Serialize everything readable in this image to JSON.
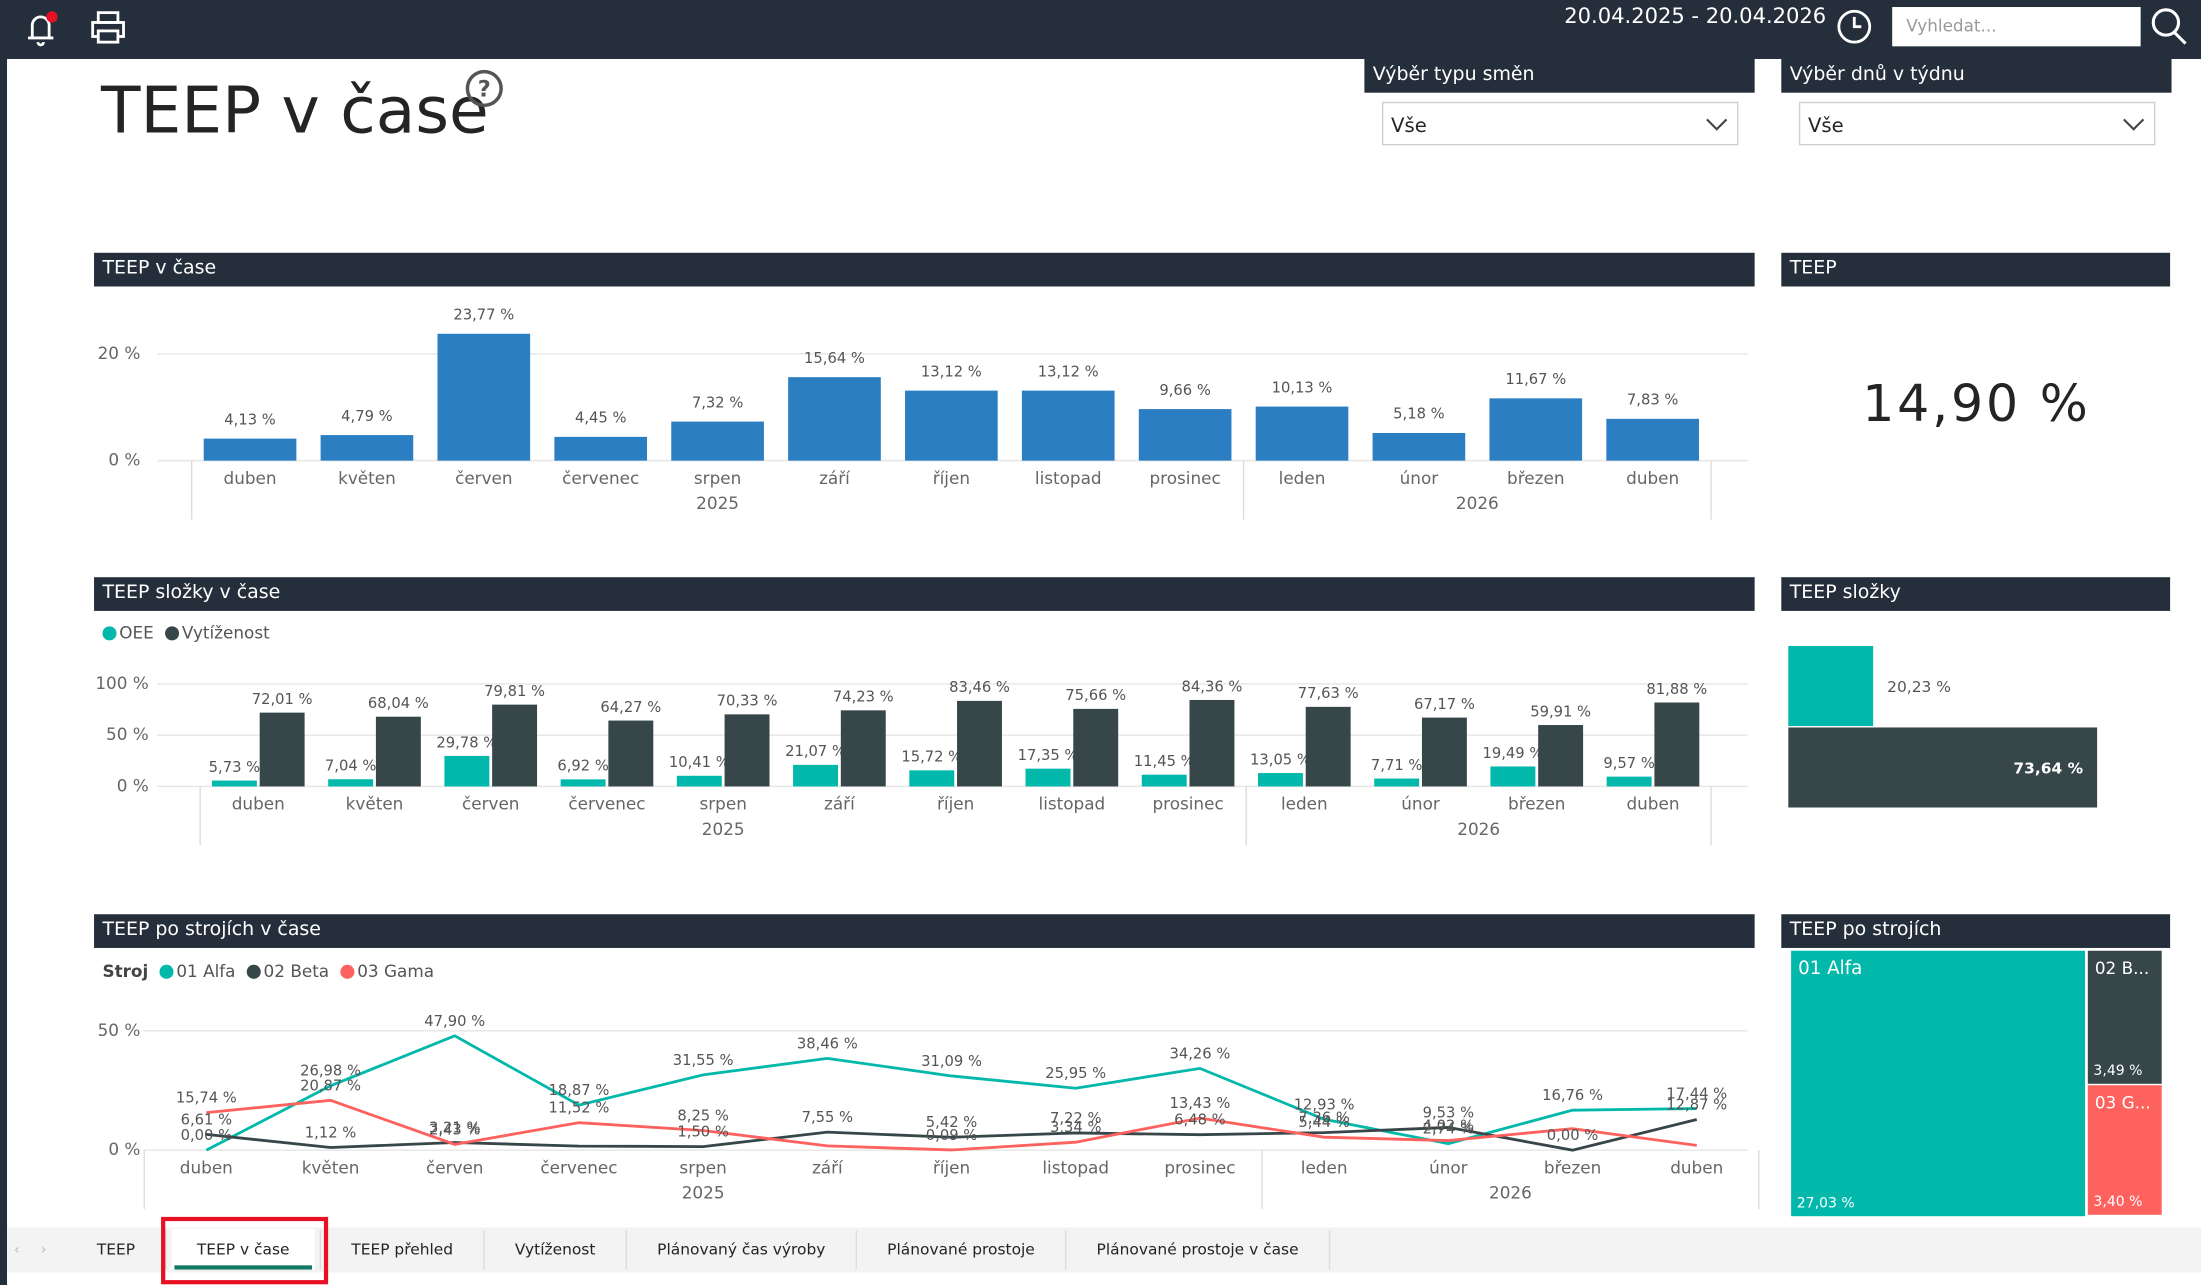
{
  "header": {
    "date_range": "20.04.2025 - 20.04.2026",
    "search_placeholder": "Vyhledat..."
  },
  "page_title": "TEEP v čase",
  "filters": [
    {
      "label": "Výběr typu směn",
      "value": "Vše"
    },
    {
      "label": "Výběr dnů v týdnu",
      "value": "Vše"
    }
  ],
  "chart_data": [
    {
      "type": "bar",
      "title": "TEEP v čase",
      "categories": [
        "duben",
        "květen",
        "červen",
        "červenec",
        "srpen",
        "září",
        "říjen",
        "listopad",
        "prosinec",
        "leden",
        "únor",
        "březen",
        "duben"
      ],
      "x_groups": [
        {
          "label": "2025",
          "count": 9
        },
        {
          "label": "2026",
          "count": 4
        }
      ],
      "values": [
        4.13,
        4.79,
        23.77,
        4.45,
        7.32,
        15.64,
        13.12,
        13.12,
        9.66,
        10.13,
        5.18,
        11.67,
        7.83
      ],
      "value_labels": [
        "4,13 %",
        "4,79 %",
        "23,77 %",
        "4,45 %",
        "7,32 %",
        "15,64 %",
        "13,12 %",
        "13,12 %",
        "9,66 %",
        "10,13 %",
        "5,18 %",
        "11,67 %",
        "7,83 %"
      ],
      "color": "#2b7ec1",
      "ylim": [
        0,
        30
      ],
      "yticks": [
        {
          "value": 0,
          "label": "0 %"
        },
        {
          "value": 20,
          "label": "20 %"
        }
      ],
      "grid": true
    },
    {
      "type": "card",
      "title": "TEEP",
      "values": [
        14.9
      ],
      "value_labels": [
        "14,90 %"
      ]
    },
    {
      "type": "grouped_bar",
      "title": "TEEP složky v čase",
      "categories": [
        "duben",
        "květen",
        "červen",
        "červenec",
        "srpen",
        "září",
        "říjen",
        "listopad",
        "prosinec",
        "leden",
        "únor",
        "březen",
        "duben"
      ],
      "x_groups": [
        {
          "label": "2025",
          "count": 9
        },
        {
          "label": "2026",
          "count": 4
        }
      ],
      "series": [
        {
          "name": "OEE",
          "color": "#01b8aa",
          "values": [
            5.73,
            7.04,
            29.78,
            6.92,
            10.41,
            21.07,
            15.72,
            17.35,
            11.45,
            13.05,
            7.71,
            19.49,
            9.57
          ],
          "value_labels": [
            "5,73 %",
            "7,04 %",
            "29,78 %",
            "6,92 %",
            "10,41 %",
            "21,07 %",
            "15,72 %",
            "17,35 %",
            "11,45 %",
            "13,05 %",
            "7,71 %",
            "19,49 %",
            "9,57 %"
          ]
        },
        {
          "name": "Vytíženost",
          "color": "#374649",
          "values": [
            72.01,
            68.04,
            79.81,
            64.27,
            70.33,
            74.23,
            83.46,
            75.66,
            84.36,
            77.63,
            67.17,
            59.91,
            81.88
          ],
          "value_labels": [
            "72,01 %",
            "68,04 %",
            "79,81 %",
            "64,27 %",
            "70,33 %",
            "74,23 %",
            "83,46 %",
            "75,66 %",
            "84,36 %",
            "77,63 %",
            "67,17 %",
            "59,91 %",
            "81,88 %"
          ]
        }
      ],
      "ylim": [
        0,
        100
      ],
      "yticks": [
        {
          "value": 0,
          "label": "0 %"
        },
        {
          "value": 50,
          "label": "50 %"
        },
        {
          "value": 100,
          "label": "100 %"
        }
      ],
      "grid": true
    },
    {
      "type": "hbar",
      "title": "TEEP složky",
      "values": [
        20.23,
        73.64
      ],
      "value_labels": [
        "20,23 %",
        "73,64 %"
      ],
      "colors": [
        "#01b8aa",
        "#374649"
      ]
    },
    {
      "type": "line",
      "title": "TEEP po strojích v čase",
      "legend_title": "Stroj",
      "categories": [
        "duben",
        "květen",
        "červen",
        "červenec",
        "srpen",
        "září",
        "říjen",
        "listopad",
        "prosinec",
        "leden",
        "únor",
        "březen",
        "duben"
      ],
      "x_groups": [
        {
          "label": "2025",
          "count": 9
        },
        {
          "label": "2026",
          "count": 4
        }
      ],
      "series": [
        {
          "name": "01 Alfa",
          "color": "#01b8aa",
          "values": [
            0.0,
            26.98,
            47.9,
            18.87,
            31.55,
            38.46,
            31.09,
            25.95,
            34.26,
            12.93,
            2.74,
            16.76,
            17.44
          ],
          "value_labels": [
            "0,00 %",
            "26,98 %",
            "47,90 %",
            "18,87 %",
            "31,55 %",
            "38,46 %",
            "31,09 %",
            "25,95 %",
            "34,26 %",
            "12,93 %",
            "2,74 %",
            "16,76 %",
            "17,44 %"
          ]
        },
        {
          "name": "02 Beta",
          "color": "#374649",
          "values": [
            6.61,
            1.12,
            3.21,
            1.7,
            1.5,
            7.55,
            5.42,
            7.22,
            6.48,
            7.36,
            9.53,
            0.0,
            12.87
          ],
          "value_labels": [
            "6,61 %",
            "1,12 %",
            "3,21 %",
            null,
            "1,50 %",
            "7,55 %",
            "5,42 %",
            "7,22 %",
            "6,48 %",
            "7,36 %",
            "9,53 %",
            "0,00 %",
            "12,87 %"
          ]
        },
        {
          "name": "03 Gama",
          "color": "#fd625e",
          "values": [
            15.74,
            20.87,
            2.43,
            11.52,
            8.25,
            1.8,
            0.09,
            3.34,
            13.43,
            5.44,
            4.02,
            9.0,
            2.0
          ],
          "value_labels": [
            "15,74 %",
            "20,87 %",
            "2,43 %",
            "11,52 %",
            "8,25 %",
            null,
            "0,09 %",
            "3,34 %",
            "13,43 %",
            "5,44 %",
            "4,02 %",
            null,
            null
          ]
        }
      ],
      "ylim": [
        0,
        55
      ],
      "yticks": [
        {
          "value": 0,
          "label": "0 %"
        },
        {
          "value": 50,
          "label": "50 %"
        }
      ],
      "grid": true
    },
    {
      "type": "treemap",
      "title": "TEEP po strojích",
      "categories": [
        "01 Alfa",
        "02 B...",
        "03 G..."
      ],
      "values": [
        27.03,
        3.49,
        3.4
      ],
      "value_labels": [
        "27,03 %",
        "3,49 %",
        "3,40 %"
      ],
      "colors": [
        "#01b8aa",
        "#374649",
        "#fd625e"
      ]
    }
  ],
  "tabs": [
    "TEEP",
    "TEEP v čase",
    "TEEP přehled",
    "Vytíženost",
    "Plánovaný čas výroby",
    "Plánované prostoje",
    "Plánované prostoje v čase"
  ],
  "active_tab": 1
}
